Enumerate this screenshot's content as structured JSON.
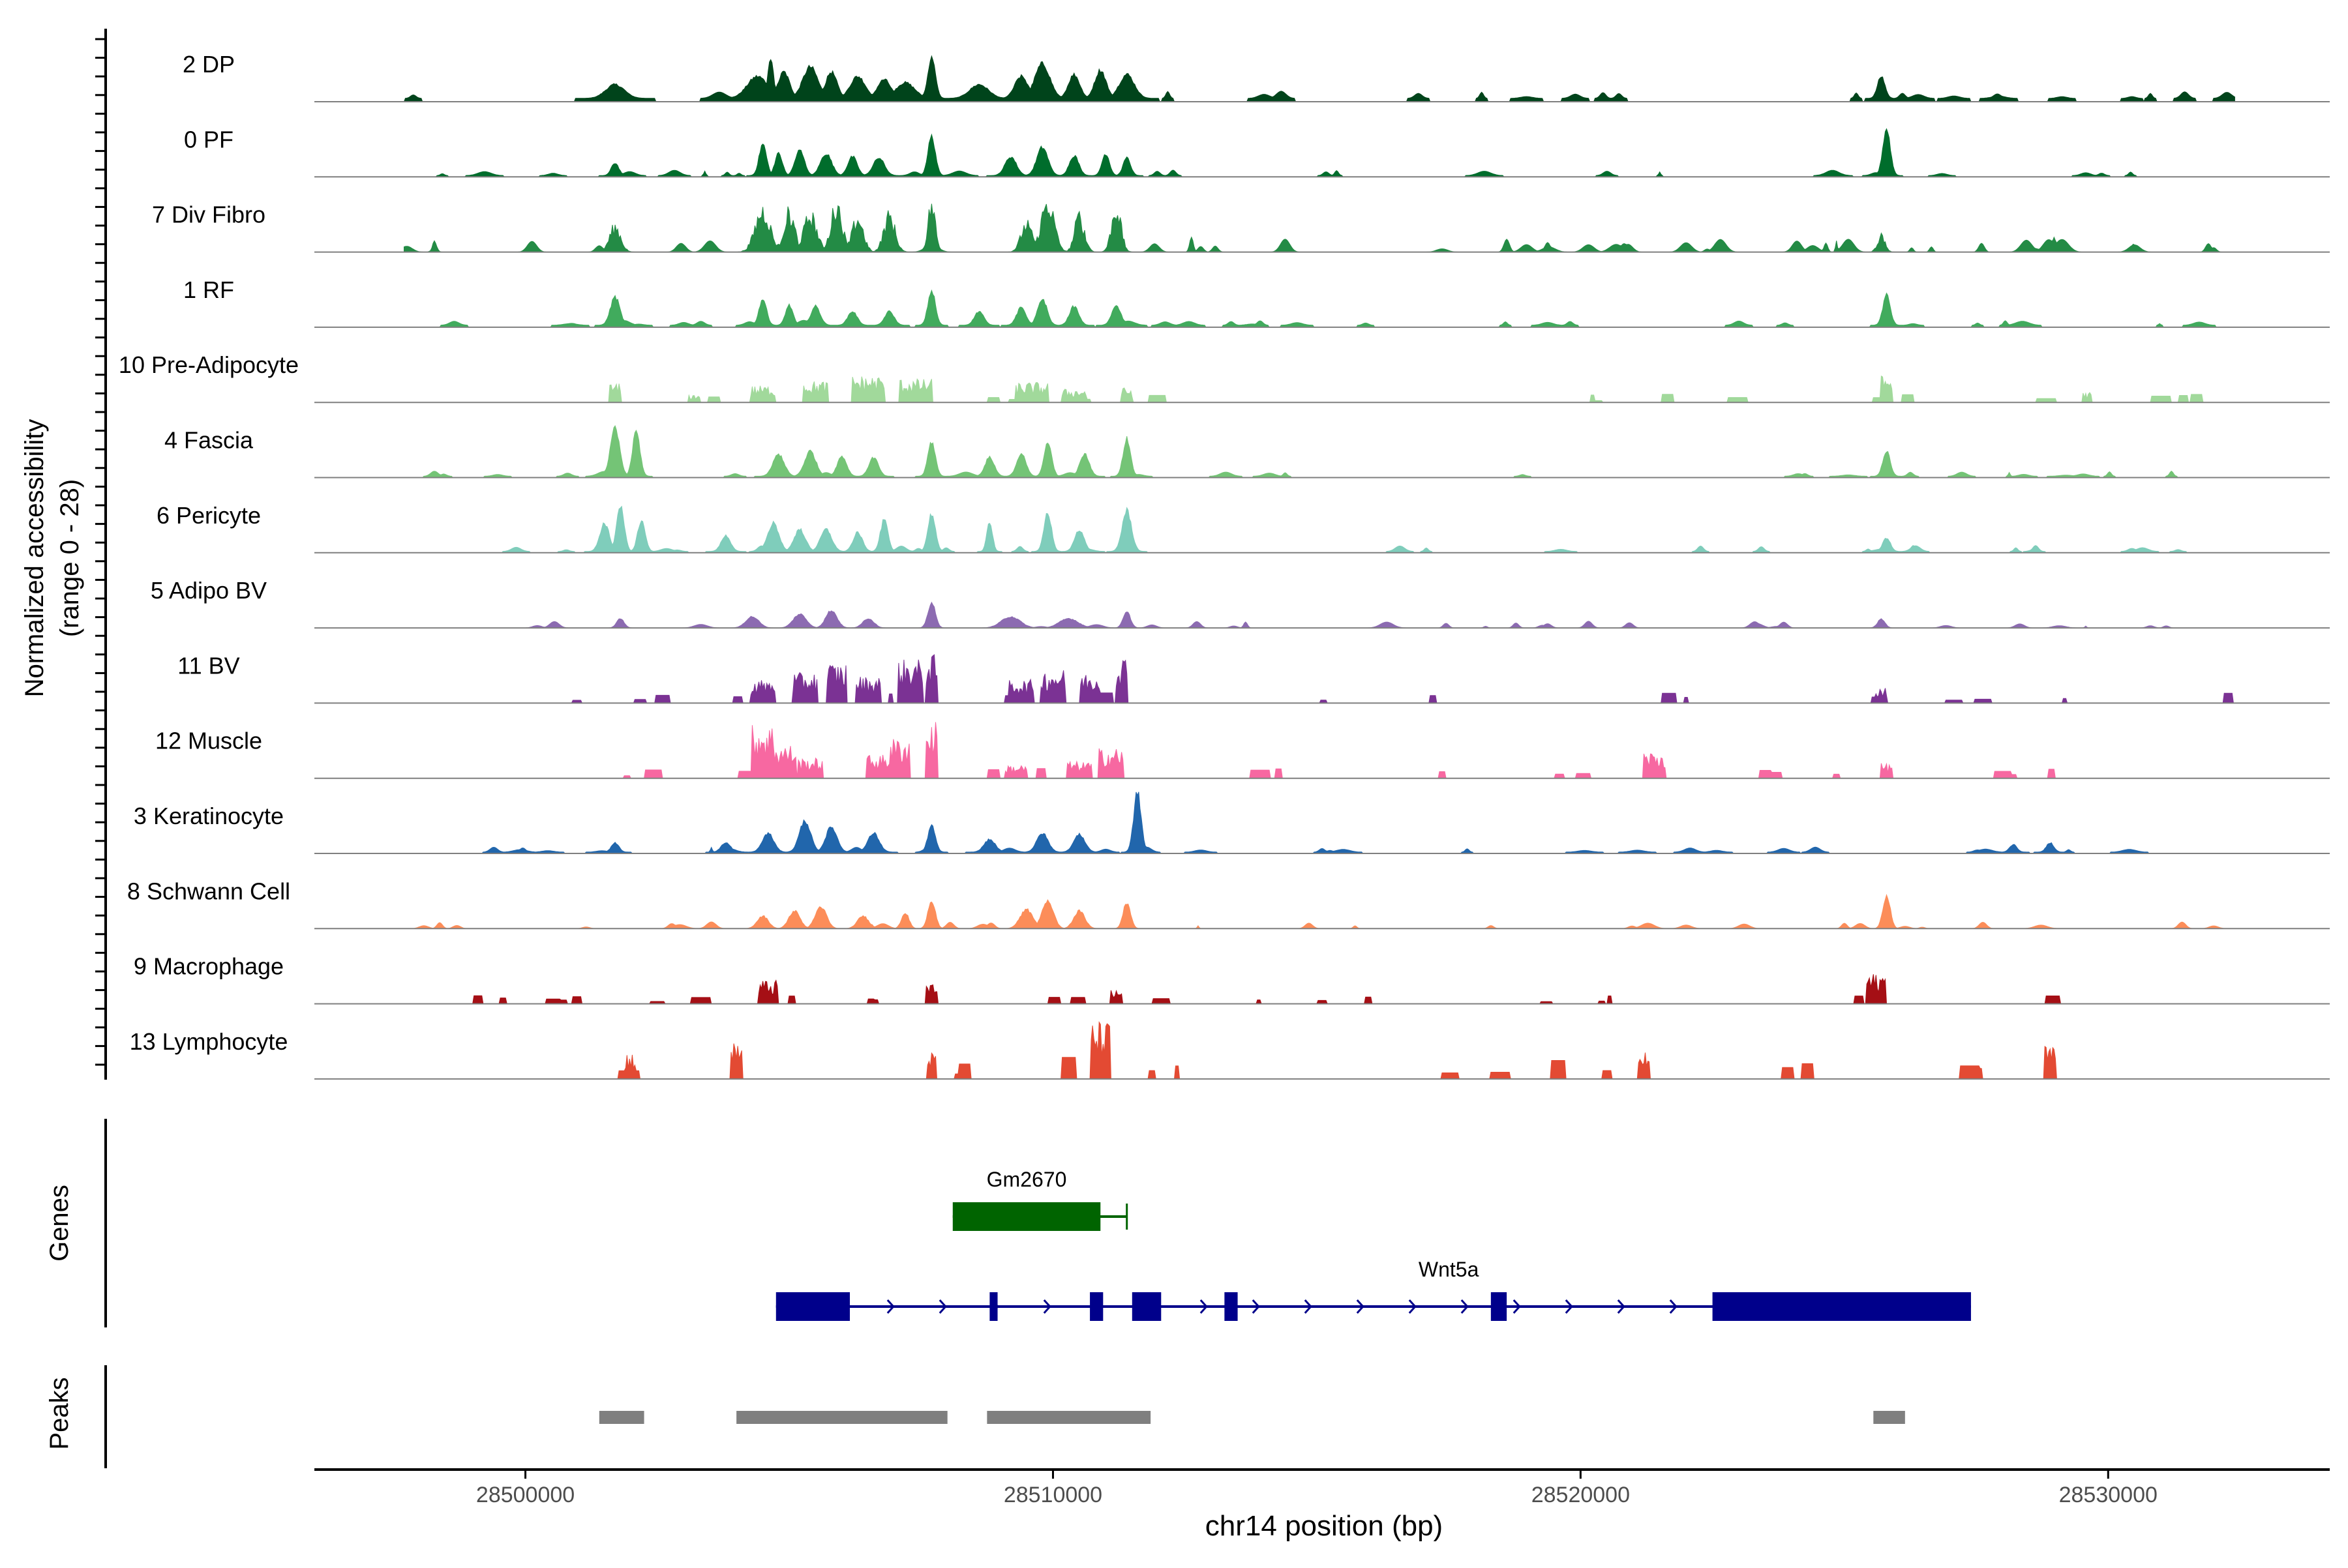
{
  "chart_data": {
    "type": "area",
    "title": "",
    "ylabel_line1": "Normalized accessibility",
    "ylabel_line2": "(range 0 - 28)",
    "xlabel": "chr14 position (bp)",
    "xlim": [
      28496000,
      28534200
    ],
    "x_ticks": [
      28500000,
      28510000,
      28520000,
      28530000
    ],
    "x_tick_labels": [
      "28500000",
      "28510000",
      "28520000",
      "28530000"
    ],
    "y_range": [
      0,
      28
    ],
    "tracks": [
      {
        "name": "2 DP",
        "color": "#00441b",
        "style": "smooth",
        "start": 28497700,
        "end": 28532400,
        "base": 0.05,
        "bg_density": 0.35,
        "bg_amp": 0.12,
        "peaks": [
          [
            28501700,
            250,
            0.22
          ],
          [
            28504400,
            280,
            0.35
          ],
          [
            28504650,
            90,
            0.62
          ],
          [
            28504900,
            160,
            0.42
          ],
          [
            28505400,
            200,
            0.5
          ],
          [
            28505800,
            160,
            0.42
          ],
          [
            28506300,
            200,
            0.35
          ],
          [
            28506800,
            180,
            0.3
          ],
          [
            28507700,
            110,
            0.65
          ],
          [
            28507200,
            250,
            0.25
          ],
          [
            28508600,
            250,
            0.22
          ],
          [
            28509400,
            180,
            0.35
          ],
          [
            28509800,
            200,
            0.55
          ],
          [
            28510400,
            150,
            0.38
          ],
          [
            28510900,
            160,
            0.45
          ],
          [
            28511400,
            200,
            0.38
          ],
          [
            28525700,
            120,
            0.35
          ]
        ]
      },
      {
        "name": "0 PF",
        "color": "#006d2c",
        "style": "smooth",
        "start": 28497700,
        "end": 28532400,
        "base": 0.02,
        "bg_density": 0.3,
        "bg_amp": 0.08,
        "peaks": [
          [
            28501700,
            120,
            0.2
          ],
          [
            28504500,
            120,
            0.5
          ],
          [
            28504800,
            110,
            0.35
          ],
          [
            28505200,
            140,
            0.4
          ],
          [
            28505700,
            150,
            0.35
          ],
          [
            28506200,
            130,
            0.3
          ],
          [
            28506700,
            150,
            0.28
          ],
          [
            28507700,
            100,
            0.62
          ],
          [
            28509200,
            150,
            0.3
          ],
          [
            28509800,
            160,
            0.45
          ],
          [
            28510400,
            130,
            0.32
          ],
          [
            28511000,
            120,
            0.35
          ],
          [
            28511400,
            110,
            0.28
          ],
          [
            28525800,
            100,
            0.75
          ]
        ]
      },
      {
        "name": "7 Div Fibro",
        "color": "#238b45",
        "style": "spiky",
        "start": 28497700,
        "end": 28532400,
        "base": 0.0,
        "bg_density": 0.55,
        "bg_amp": 0.22,
        "peaks": [
          [
            28501700,
            150,
            0.45
          ],
          [
            28504500,
            220,
            0.75
          ],
          [
            28505000,
            160,
            0.7
          ],
          [
            28505400,
            180,
            0.65
          ],
          [
            28505900,
            150,
            0.85
          ],
          [
            28506300,
            160,
            0.6
          ],
          [
            28506900,
            150,
            0.65
          ],
          [
            28507700,
            100,
            0.85
          ],
          [
            28509500,
            150,
            0.5
          ],
          [
            28509900,
            180,
            0.9
          ],
          [
            28510500,
            140,
            0.65
          ],
          [
            28511200,
            130,
            0.8
          ],
          [
            28525700,
            120,
            0.3
          ]
        ]
      },
      {
        "name": "1 RF",
        "color": "#41ab5d",
        "style": "smooth",
        "start": 28497700,
        "end": 28532400,
        "base": 0.03,
        "bg_density": 0.35,
        "bg_amp": 0.08,
        "peaks": [
          [
            28501700,
            130,
            0.45
          ],
          [
            28504500,
            120,
            0.42
          ],
          [
            28505000,
            120,
            0.32
          ],
          [
            28505500,
            130,
            0.3
          ],
          [
            28506200,
            140,
            0.22
          ],
          [
            28506900,
            130,
            0.22
          ],
          [
            28507700,
            100,
            0.55
          ],
          [
            28508600,
            130,
            0.22
          ],
          [
            28509400,
            140,
            0.28
          ],
          [
            28509800,
            140,
            0.42
          ],
          [
            28510400,
            130,
            0.3
          ],
          [
            28511200,
            130,
            0.3
          ],
          [
            28525800,
            110,
            0.48
          ]
        ]
      },
      {
        "name": "10 Pre-Adipocyte",
        "color": "#a1d99b",
        "style": "blocky",
        "start": 28501400,
        "end": 28532400,
        "base": 0.0,
        "bg_density": 0.2,
        "bg_amp": 0.12,
        "peaks": [
          [
            28501700,
            120,
            0.28
          ],
          [
            28503200,
            100,
            0.12
          ],
          [
            28504500,
            200,
            0.25
          ],
          [
            28505500,
            200,
            0.32
          ],
          [
            28506500,
            250,
            0.4
          ],
          [
            28507400,
            250,
            0.35
          ],
          [
            28509600,
            250,
            0.3
          ],
          [
            28510400,
            200,
            0.2
          ],
          [
            28511400,
            120,
            0.22
          ],
          [
            28525800,
            120,
            0.4
          ],
          [
            28529600,
            80,
            0.15
          ]
        ]
      },
      {
        "name": "4 Fascia",
        "color": "#74c476",
        "style": "smooth",
        "start": 28497700,
        "end": 28532400,
        "base": 0.02,
        "bg_density": 0.3,
        "bg_amp": 0.08,
        "peaks": [
          [
            28501700,
            140,
            0.75
          ],
          [
            28502100,
            120,
            0.7
          ],
          [
            28504800,
            160,
            0.35
          ],
          [
            28505400,
            150,
            0.4
          ],
          [
            28506000,
            140,
            0.32
          ],
          [
            28506600,
            140,
            0.3
          ],
          [
            28507700,
            100,
            0.55
          ],
          [
            28508800,
            140,
            0.3
          ],
          [
            28509400,
            130,
            0.35
          ],
          [
            28509900,
            110,
            0.55
          ],
          [
            28510600,
            140,
            0.35
          ],
          [
            28511400,
            110,
            0.6
          ],
          [
            28525800,
            100,
            0.4
          ]
        ]
      },
      {
        "name": "6 Pericyte",
        "color": "#7fcdbb",
        "style": "smooth",
        "start": 28497700,
        "end": 28532400,
        "base": 0.02,
        "bg_density": 0.35,
        "bg_amp": 0.09,
        "peaks": [
          [
            28501500,
            140,
            0.45
          ],
          [
            28501800,
            110,
            0.75
          ],
          [
            28502200,
            120,
            0.5
          ],
          [
            28503800,
            130,
            0.25
          ],
          [
            28504700,
            150,
            0.45
          ],
          [
            28505200,
            150,
            0.35
          ],
          [
            28505700,
            150,
            0.35
          ],
          [
            28506300,
            140,
            0.3
          ],
          [
            28506800,
            110,
            0.5
          ],
          [
            28507700,
            100,
            0.6
          ],
          [
            28508800,
            90,
            0.48
          ],
          [
            28509900,
            110,
            0.62
          ],
          [
            28510500,
            140,
            0.35
          ],
          [
            28511400,
            140,
            0.65
          ],
          [
            28525800,
            100,
            0.22
          ]
        ]
      },
      {
        "name": "5 Adipo BV",
        "color": "#8c6bb1",
        "style": "smooth",
        "start": 28499000,
        "end": 28532400,
        "base": 0.0,
        "bg_density": 0.35,
        "bg_amp": 0.1,
        "peaks": [
          [
            28501800,
            120,
            0.15
          ],
          [
            28504300,
            180,
            0.18
          ],
          [
            28505200,
            180,
            0.22
          ],
          [
            28505800,
            150,
            0.28
          ],
          [
            28506500,
            160,
            0.15
          ],
          [
            28507700,
            110,
            0.4
          ],
          [
            28509200,
            250,
            0.18
          ],
          [
            28510300,
            250,
            0.15
          ],
          [
            28511400,
            100,
            0.25
          ],
          [
            28525700,
            100,
            0.14
          ]
        ]
      },
      {
        "name": "11 BV",
        "color": "#7b3294",
        "style": "blocky",
        "start": 28498600,
        "end": 28532400,
        "base": 0.0,
        "bg_density": 0.25,
        "bg_amp": 0.15,
        "peaks": [
          [
            28504500,
            200,
            0.35
          ],
          [
            28505300,
            200,
            0.45
          ],
          [
            28505900,
            150,
            0.6
          ],
          [
            28506500,
            200,
            0.4
          ],
          [
            28507300,
            200,
            0.65
          ],
          [
            28507700,
            120,
            0.72
          ],
          [
            28509400,
            200,
            0.35
          ],
          [
            28510000,
            200,
            0.5
          ],
          [
            28510700,
            150,
            0.45
          ],
          [
            28511300,
            120,
            0.7
          ],
          [
            28525700,
            100,
            0.25
          ]
        ]
      },
      {
        "name": "12 Muscle",
        "color": "#f768a1",
        "style": "blocky",
        "start": 28501300,
        "end": 28532400,
        "base": 0.0,
        "bg_density": 0.25,
        "bg_amp": 0.15,
        "peaks": [
          [
            28504500,
            180,
            0.8
          ],
          [
            28504900,
            200,
            0.5
          ],
          [
            28505400,
            200,
            0.3
          ],
          [
            28506700,
            200,
            0.35
          ],
          [
            28507100,
            150,
            0.6
          ],
          [
            28507700,
            120,
            0.85
          ],
          [
            28509300,
            180,
            0.2
          ],
          [
            28510500,
            200,
            0.25
          ],
          [
            28511100,
            200,
            0.45
          ],
          [
            28521400,
            180,
            0.4
          ],
          [
            28525800,
            100,
            0.22
          ]
        ]
      },
      {
        "name": "3 Keratinocyte",
        "color": "#2166ac",
        "style": "smooth",
        "start": 28497700,
        "end": 28532400,
        "base": 0.02,
        "bg_density": 0.35,
        "bg_amp": 0.08,
        "peaks": [
          [
            28501700,
            120,
            0.15
          ],
          [
            28503800,
            140,
            0.15
          ],
          [
            28504600,
            150,
            0.3
          ],
          [
            28505300,
            150,
            0.5
          ],
          [
            28505800,
            150,
            0.4
          ],
          [
            28506600,
            150,
            0.3
          ],
          [
            28507700,
            100,
            0.42
          ],
          [
            28508800,
            150,
            0.2
          ],
          [
            28509800,
            160,
            0.3
          ],
          [
            28510500,
            150,
            0.28
          ],
          [
            28511600,
            110,
            0.95
          ],
          [
            28528200,
            120,
            0.12
          ],
          [
            28528900,
            120,
            0.15
          ]
        ]
      },
      {
        "name": "8 Schwann Cell",
        "color": "#fc8d59",
        "style": "smooth",
        "start": 28497700,
        "end": 28532400,
        "base": 0.0,
        "bg_density": 0.35,
        "bg_amp": 0.1,
        "peaks": [
          [
            28504500,
            150,
            0.2
          ],
          [
            28505100,
            160,
            0.28
          ],
          [
            28505600,
            160,
            0.35
          ],
          [
            28506400,
            160,
            0.2
          ],
          [
            28507200,
            120,
            0.25
          ],
          [
            28507700,
            100,
            0.45
          ],
          [
            28509500,
            180,
            0.3
          ],
          [
            28509900,
            160,
            0.45
          ],
          [
            28510500,
            150,
            0.28
          ],
          [
            28511400,
            110,
            0.42
          ],
          [
            28525800,
            100,
            0.52
          ]
        ]
      },
      {
        "name": "9 Macrophage",
        "color": "#a50f15",
        "style": "blocky",
        "start": 28499000,
        "end": 28530000,
        "base": 0.0,
        "bg_density": 0.3,
        "bg_amp": 0.12,
        "peaks": [
          [
            28504600,
            150,
            0.35
          ],
          [
            28507700,
            120,
            0.32
          ],
          [
            28511200,
            120,
            0.2
          ],
          [
            28525600,
            150,
            0.45
          ]
        ]
      },
      {
        "name": "13 Lymphocyte",
        "color": "#e34a33",
        "style": "blocky",
        "start": 28501700,
        "end": 28531300,
        "base": 0.0,
        "bg_density": 0.22,
        "bg_amp": 0.35,
        "peaks": [
          [
            28502000,
            80,
            0.4
          ],
          [
            28504000,
            100,
            0.55
          ],
          [
            28507700,
            80,
            0.4
          ],
          [
            28510900,
            150,
            0.85
          ],
          [
            28521200,
            100,
            0.4
          ],
          [
            28528900,
            120,
            0.5
          ]
        ]
      }
    ],
    "genes_label": "Genes",
    "genes": [
      {
        "name": "Gm2670",
        "color": "#006400",
        "strand": "-",
        "start": 28508100,
        "end": 28511400,
        "row": 0,
        "exons": [
          [
            28508100,
            28510900
          ]
        ]
      },
      {
        "name": "Wnt5a",
        "color": "#00008b",
        "strand": "+",
        "start": 28504750,
        "end": 28527400,
        "row": 1,
        "exons": [
          [
            28504750,
            28506150
          ],
          [
            28508800,
            28508950
          ],
          [
            28510700,
            28510950
          ],
          [
            28511500,
            28512050
          ],
          [
            28513250,
            28513500
          ],
          [
            28518300,
            28518600
          ],
          [
            28522500,
            28527400
          ]
        ]
      }
    ],
    "peaks_label": "Peaks",
    "peaks": [
      [
        28501400,
        28502250
      ],
      [
        28504000,
        28508000
      ],
      [
        28508750,
        28511850
      ],
      [
        28525550,
        28526150
      ]
    ]
  }
}
